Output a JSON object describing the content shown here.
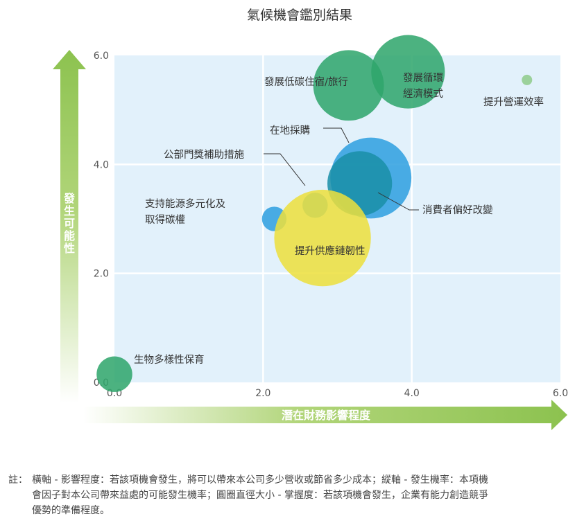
{
  "chart_data": {
    "type": "bubble",
    "title": "氣候機會鑑別結果",
    "xlabel": "潛在財務影響程度",
    "ylabel": "發生可能性",
    "xlim": [
      0,
      6
    ],
    "ylim": [
      0,
      6
    ],
    "x_ticks": [
      "0.0",
      "2.0",
      "4.0",
      "6.0"
    ],
    "y_ticks": [
      "0.0",
      "2.0",
      "4.0",
      "6.0"
    ],
    "grid": true,
    "series": [
      {
        "label": "發展低碳住宿/旅行",
        "x": 3.15,
        "y": 5.45,
        "size": 0.95,
        "color": "#2fa56b"
      },
      {
        "label": "發展循環經濟模式",
        "x": 3.95,
        "y": 5.7,
        "size": 0.99,
        "color": "#2fa56b"
      },
      {
        "label": "提升營運效率",
        "x": 5.55,
        "y": 5.55,
        "size": 0.14,
        "color": "#8fcc8a"
      },
      {
        "label": "在地採購",
        "x": 3.45,
        "y": 3.75,
        "size": 1.09,
        "color": "#2f9fe0"
      },
      {
        "label": "消費者偏好改變",
        "x": 3.3,
        "y": 3.65,
        "size": 0.87,
        "color": "#1a8fa8"
      },
      {
        "label": "公部門獎補助措施",
        "x": 2.7,
        "y": 3.25,
        "size": 0.34,
        "color": "#2f9fe0"
      },
      {
        "label": "支持能源多元化及取得碳權",
        "x": 2.15,
        "y": 3.0,
        "size": 0.33,
        "color": "#2f9fe0"
      },
      {
        "label": "提升供應鏈韌性",
        "x": 2.8,
        "y": 2.65,
        "size": 1.3,
        "color": "#ecdf3c"
      },
      {
        "label": "生物多樣性保育",
        "x": 0.0,
        "y": 0.15,
        "size": 0.48,
        "color": "#2fa56b"
      }
    ]
  },
  "labels": {
    "low_carbon": "發展低碳住宿/旅行",
    "circular_1": "發展循環",
    "circular_2": "經濟模式",
    "efficiency": "提升營運效率",
    "local": "在地採購",
    "consumer": "消費者偏好改變",
    "subsidy": "公部門獎補助措施",
    "energy_1": "支持能源多元化及",
    "energy_2": "取得碳權",
    "supply": "提升供應鏈韌性",
    "bio": "生物多樣性保育"
  },
  "ylabel_chars": [
    "發",
    "生",
    "可",
    "能",
    "性"
  ],
  "note": {
    "prefix": "註：",
    "text": "橫軸 - 影響程度：若該項機會發生，將可以帶來本公司多少營收或節省多少成本；縱軸 - 發生機率：本項機會因子對本公司帶來益處的可能發生機率；圓圈直徑大小 - 掌握度：若該項機會發生，企業有能力創造競爭優勢的準備程度。"
  }
}
